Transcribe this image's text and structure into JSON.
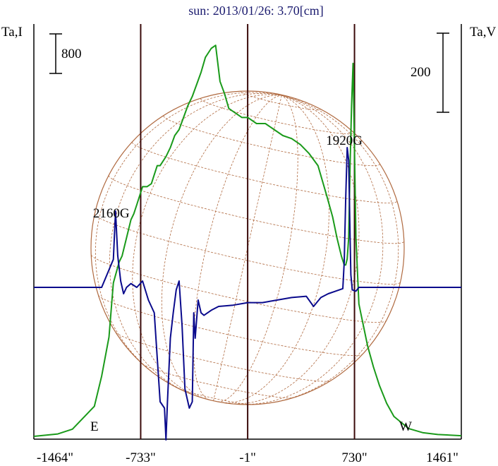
{
  "chart_data": {
    "type": "line",
    "title": "sun: 2013/01/26: 3.70[cm]",
    "ylabel_left": "Ta,I",
    "ylabel_right": "Ta,V",
    "x_ticks": [
      "-1464\"",
      "-733\"",
      "-1\"",
      "730\"",
      "1461\""
    ],
    "x_tick_values": [
      -1464,
      -733,
      -1,
      730,
      1461
    ],
    "xlim": [
      -1464,
      1461
    ],
    "scale_bar_left": "800",
    "scale_bar_right": "200",
    "limb_labels": {
      "east": "E",
      "west": "W"
    },
    "vertical_lines_x": [
      -733,
      -1,
      730
    ],
    "annotations": [
      {
        "text": "2160G",
        "x": -905,
        "series": "Ta,V"
      },
      {
        "text": "1920G",
        "x": 690,
        "series": "Ta,V"
      }
    ],
    "colors": {
      "ta_i": "#1a9a1a",
      "ta_v": "#0a0a8c",
      "disk": "#b06a40",
      "frame": "#000000",
      "verticals": "#3a0a0a"
    },
    "series": [
      {
        "key": "ta_i",
        "x": [
          -1464,
          -1300,
          -1200,
          -1050,
          -1000,
          -950,
          -920,
          -880,
          -860,
          -830,
          -800,
          -780,
          -760,
          -740,
          -720,
          -690,
          -660,
          -640,
          -620,
          -600,
          -560,
          -530,
          -500,
          -470,
          -440,
          -410,
          -380,
          -350,
          -320,
          -290,
          -250,
          -220,
          -190,
          -160,
          -130,
          -100,
          -40,
          0,
          60,
          120,
          180,
          240,
          300,
          360,
          420,
          480,
          540,
          580,
          610,
          640,
          660,
          670,
          680,
          690,
          700,
          710,
          720,
          740,
          760,
          790,
          820,
          860,
          900,
          950,
          1000,
          1100,
          1200,
          1300,
          1461
        ],
        "y": [
          0,
          40,
          120,
          500,
          1000,
          1650,
          2550,
          2900,
          3000,
          3300,
          3600,
          3700,
          3850,
          4000,
          4150,
          4150,
          4200,
          4350,
          4500,
          4500,
          4650,
          4800,
          5000,
          5100,
          5300,
          5500,
          5650,
          5850,
          6050,
          6300,
          6450,
          6500,
          5900,
          5700,
          5450,
          5400,
          5300,
          5300,
          5200,
          5200,
          5100,
          5000,
          4950,
          4850,
          4700,
          4500,
          4000,
          3650,
          3300,
          3000,
          2850,
          2850,
          2950,
          3300,
          4500,
          5500,
          6200,
          3300,
          2200,
          1850,
          1500,
          1150,
          850,
          550,
          330,
          130,
          60,
          30,
          10
        ]
      },
      {
        "key": "ta_v",
        "x": [
          -1464,
          -1000,
          -920,
          -905,
          -890,
          -870,
          -850,
          -830,
          -800,
          -760,
          -720,
          -680,
          -640,
          -600,
          -570,
          -560,
          -550,
          -530,
          -510,
          -490,
          -470,
          -450,
          -430,
          -400,
          -380,
          -370,
          -360,
          -340,
          -320,
          -300,
          -250,
          -200,
          -100,
          0,
          100,
          200,
          300,
          400,
          450,
          500,
          550,
          600,
          650,
          660,
          670,
          680,
          690,
          700,
          705,
          715,
          740,
          760,
          800,
          1000,
          1461
        ],
        "y": [
          0,
          0,
          22,
          60,
          25,
          5,
          -5,
          0,
          3,
          0,
          5,
          -10,
          -20,
          -90,
          -95,
          -120,
          -90,
          -40,
          -20,
          -2,
          5,
          -30,
          -80,
          -95,
          -90,
          -20,
          -40,
          -10,
          -20,
          -22,
          -18,
          -15,
          -14,
          -12,
          -12,
          -10,
          -8,
          -7,
          -15,
          -8,
          -5,
          -3,
          -1,
          20,
          70,
          110,
          100,
          40,
          10,
          -2,
          -3,
          0,
          0,
          0,
          0
        ]
      }
    ]
  }
}
